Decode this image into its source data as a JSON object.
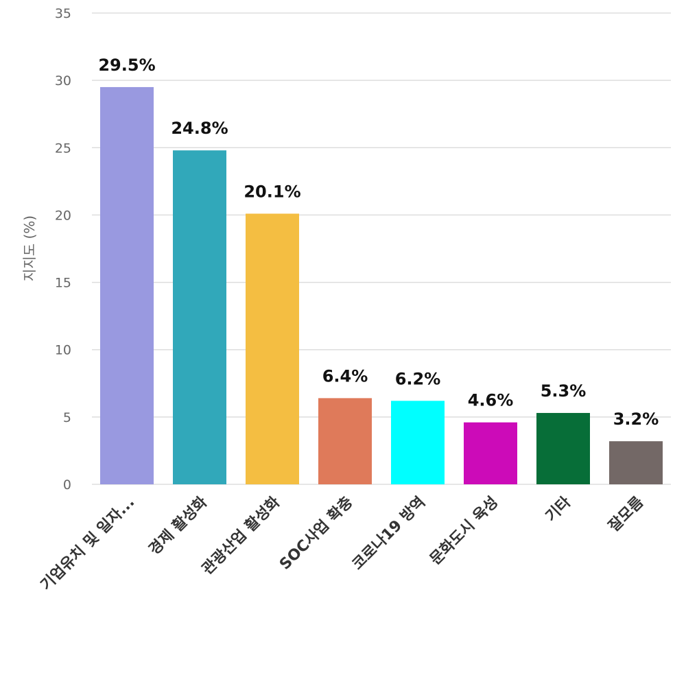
{
  "chart_data": {
    "type": "bar",
    "title": "",
    "xlabel": "",
    "ylabel": "지지도 (%)",
    "ylim": [
      0,
      35
    ],
    "yticks": [
      0,
      5,
      10,
      15,
      20,
      25,
      30,
      35
    ],
    "grid": true,
    "legend": "none",
    "categories": [
      "기업유치 및 일자...",
      "경제 활성화",
      "관광산업 활성화",
      "SOC사업 확충",
      "코로나19 방역",
      "문화도시 육성",
      "기타",
      "잘모름"
    ],
    "values": [
      29.5,
      24.8,
      20.1,
      6.4,
      6.2,
      4.6,
      5.3,
      3.2
    ],
    "value_labels": [
      "29.5%",
      "24.8%",
      "20.1%",
      "6.4%",
      "6.2%",
      "4.6%",
      "5.3%",
      "3.2%"
    ],
    "colors": [
      "#9999e0",
      "#31a8ba",
      "#f4be42",
      "#df7a5a",
      "#00ffff",
      "#cc0bb8",
      "#076e38",
      "#736866"
    ]
  }
}
